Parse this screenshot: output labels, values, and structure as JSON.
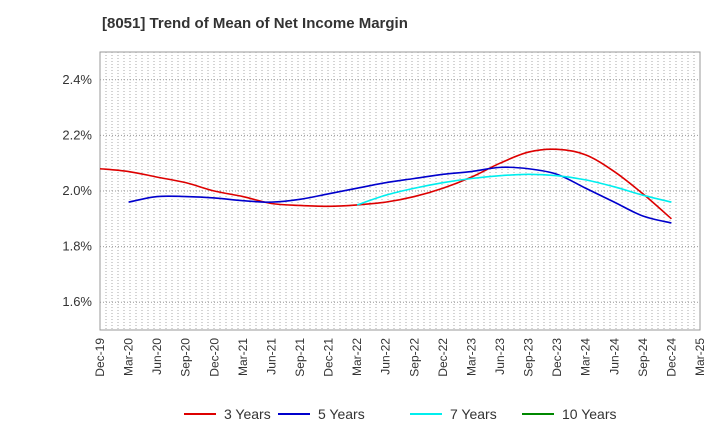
{
  "chart_data": {
    "type": "line",
    "title": "[8051]  Trend of Mean of Net Income Margin",
    "xlabel": "",
    "ylabel": "",
    "ylim": [
      1.5,
      2.5
    ],
    "yticks": [
      1.6,
      1.8,
      2.0,
      2.2,
      2.4
    ],
    "yticklabels": [
      "1.6%",
      "1.8%",
      "2.0%",
      "2.2%",
      "2.4%"
    ],
    "xlim": [
      "Dec-19",
      "Mar-25"
    ],
    "xticklabels": [
      "Dec-19",
      "Mar-20",
      "Jun-20",
      "Sep-20",
      "Dec-20",
      "Mar-21",
      "Jun-21",
      "Sep-21",
      "Dec-21",
      "Mar-22",
      "Jun-22",
      "Sep-22",
      "Dec-22",
      "Mar-23",
      "Jun-23",
      "Sep-23",
      "Dec-23",
      "Mar-24",
      "Jun-24",
      "Sep-24",
      "Dec-24",
      "Mar-25"
    ],
    "grid": true,
    "legend_position": "bottom",
    "series": [
      {
        "name": "3 Years",
        "color": "#dd0000",
        "x": [
          "Dec-19",
          "Mar-20",
          "Jun-20",
          "Sep-20",
          "Dec-20",
          "Mar-21",
          "Jun-21",
          "Sep-21",
          "Dec-21",
          "Mar-22",
          "Jun-22",
          "Sep-22",
          "Dec-22",
          "Mar-23",
          "Jun-23",
          "Sep-23",
          "Dec-23",
          "Mar-24",
          "Jun-24",
          "Sep-24",
          "Dec-24"
        ],
        "values": [
          2.08,
          2.07,
          2.05,
          2.03,
          2.0,
          1.98,
          1.955,
          1.948,
          1.945,
          1.95,
          1.96,
          1.98,
          2.01,
          2.05,
          2.1,
          2.14,
          2.15,
          2.13,
          2.07,
          1.99,
          1.9
        ]
      },
      {
        "name": "5 Years",
        "color": "#0000cc",
        "x": [
          "Mar-20",
          "Jun-20",
          "Sep-20",
          "Dec-20",
          "Mar-21",
          "Jun-21",
          "Sep-21",
          "Dec-21",
          "Mar-22",
          "Jun-22",
          "Sep-22",
          "Dec-22",
          "Mar-23",
          "Jun-23",
          "Sep-23",
          "Dec-23",
          "Mar-24",
          "Jun-24",
          "Sep-24",
          "Dec-24"
        ],
        "values": [
          1.96,
          1.98,
          1.98,
          1.975,
          1.965,
          1.96,
          1.97,
          1.99,
          2.01,
          2.03,
          2.045,
          2.06,
          2.07,
          2.085,
          2.08,
          2.06,
          2.01,
          1.96,
          1.91,
          1.885
        ]
      },
      {
        "name": "7 Years",
        "color": "#00eeee",
        "x": [
          "Mar-22",
          "Jun-22",
          "Sep-22",
          "Dec-22",
          "Mar-23",
          "Jun-23",
          "Sep-23",
          "Dec-23",
          "Mar-24",
          "Jun-24",
          "Sep-24",
          "Dec-24"
        ],
        "values": [
          1.95,
          1.985,
          2.01,
          2.03,
          2.045,
          2.055,
          2.06,
          2.055,
          2.04,
          2.015,
          1.985,
          1.96
        ]
      },
      {
        "name": "10 Years",
        "color": "#008800",
        "x": [],
        "values": []
      }
    ]
  }
}
